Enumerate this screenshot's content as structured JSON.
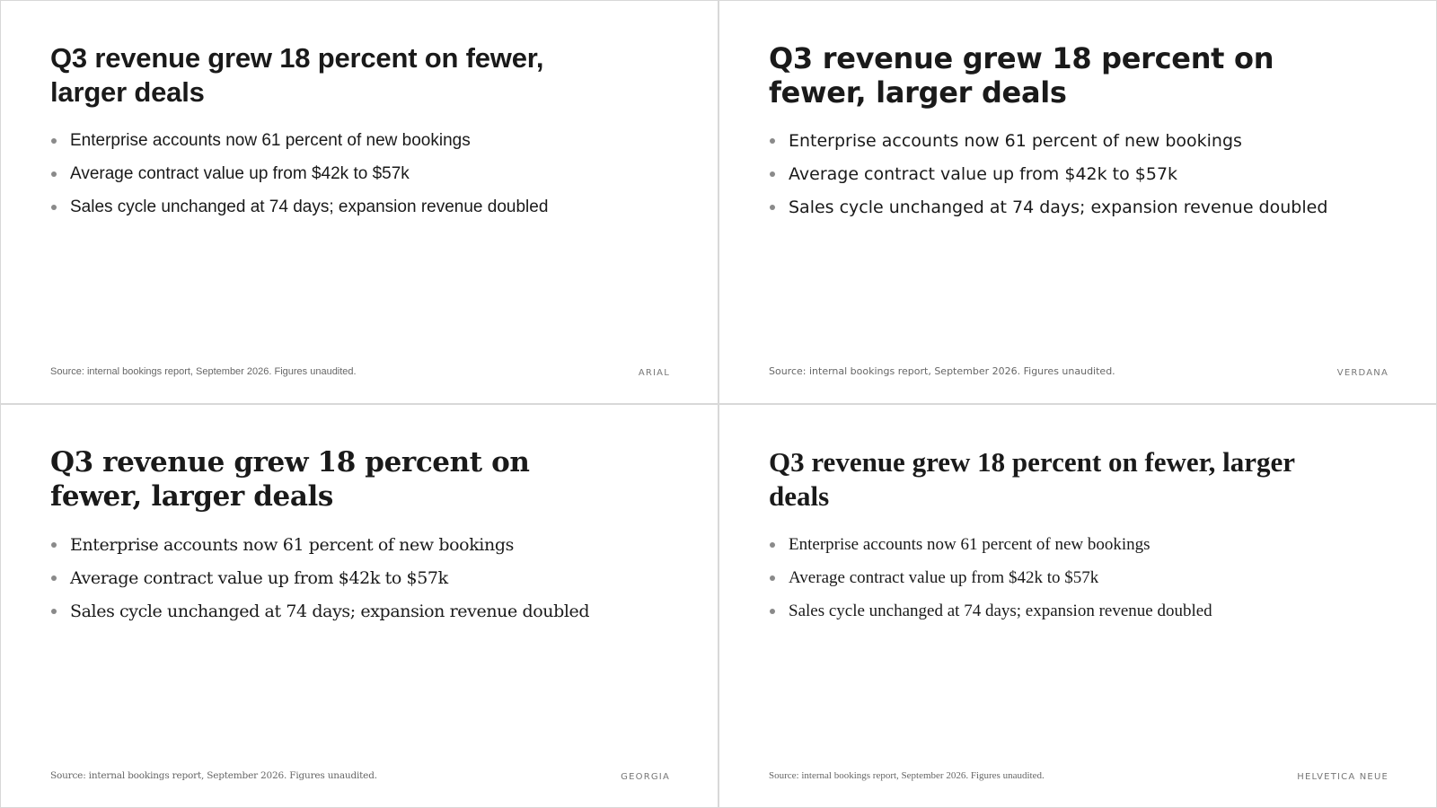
{
  "slides": [
    {
      "font_label": "ARIAL",
      "title": "Q3 revenue grew 18 percent on fewer, larger deals",
      "bullets": [
        "Enterprise accounts now 61 percent of new bookings",
        "Average contract value up from $42k to $57k",
        "Sales cycle unchanged at 74 days; expansion revenue doubled"
      ],
      "source": "Source: internal bookings report, September 2026. Figures unaudited."
    },
    {
      "font_label": "VERDANA",
      "title": "Q3 revenue grew 18 percent on fewer, larger deals",
      "bullets": [
        "Enterprise accounts now 61 percent of new bookings",
        "Average contract value up from $42k to $57k",
        "Sales cycle unchanged at 74 days; expansion revenue doubled"
      ],
      "source": "Source: internal bookings report, September 2026. Figures unaudited."
    },
    {
      "font_label": "GEORGIA",
      "title": "Q3 revenue grew 18 percent on fewer, larger deals",
      "bullets": [
        "Enterprise accounts now 61 percent of new bookings",
        "Average contract value up from $42k to $57k",
        "Sales cycle unchanged at 74 days; expansion revenue doubled"
      ],
      "source": "Source: internal bookings report, September 2026. Figures unaudited."
    },
    {
      "font_label": "HELVETICA NEUE",
      "title": "Q3 revenue grew 18 percent on fewer, larger deals",
      "bullets": [
        "Enterprise accounts now 61 percent of new bookings",
        "Average contract value up from $42k to $57k",
        "Sales cycle unchanged at 74 days; expansion revenue doubled"
      ],
      "source": "Source: internal bookings report, September 2026. Figures unaudited."
    }
  ]
}
